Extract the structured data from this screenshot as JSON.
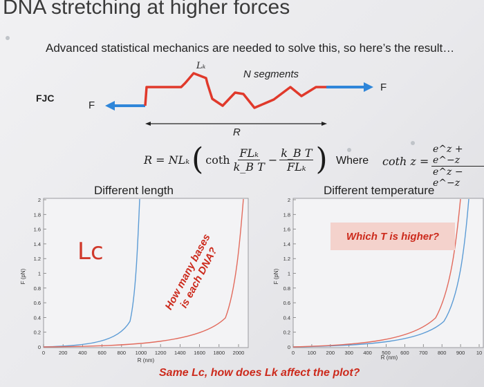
{
  "title": "DNA stretching at higher forces",
  "subtitle": "Advanced statistical mechanics are needed to solve this, so here’s the result…",
  "diagram": {
    "lk_label": "Lₖ",
    "n_segments_label": "N segments",
    "fjc_label": "FJC",
    "force_left": "F",
    "force_right": "F",
    "r_label": "R"
  },
  "formula": {
    "lhs": "R = NLₖ",
    "coth": "coth",
    "frac1_num": "FLₖ",
    "frac1_den": "k_B T",
    "frac2_num": "k_B T",
    "frac2_den": "FLₖ",
    "where": "Where",
    "coth_def_lhs": "coth z =",
    "coth_def_num": "e^z + e^−z",
    "coth_def_den": "e^z − e^−z"
  },
  "left_panel": {
    "heading": "Different length",
    "ylabel": "F (pN)",
    "xlabel": "R (nm)",
    "yticks": [
      "0",
      "0.2",
      "0.4",
      "0.6",
      "0.8",
      "1",
      "1.2",
      "1.4",
      "1.6",
      "1.8",
      "2"
    ],
    "xticks": [
      "0",
      "200",
      "400",
      "600",
      "800",
      "1000",
      "1200",
      "1400",
      "1600",
      "1800",
      "2000"
    ],
    "annotation_lc": "Lc",
    "annotation_rotated_line1": "How many bases",
    "annotation_rotated_line2": "is each DNA?"
  },
  "right_panel": {
    "heading": "Different temperature",
    "ylabel": "F (pN)",
    "xlabel": "R (nm)",
    "yticks": [
      "0",
      "0.2",
      "0.4",
      "0.6",
      "0.8",
      "1",
      "1.2",
      "1.4",
      "1.6",
      "1.8",
      "2"
    ],
    "xticks": [
      "0",
      "100",
      "200",
      "300",
      "400",
      "500",
      "600",
      "700",
      "800",
      "900",
      "10"
    ],
    "callout": "Which T is higher?"
  },
  "bottom_note": "Same Lc, how does Lk affect the plot?",
  "colors": {
    "red_annotation": "#cc2a1c",
    "blue_arrow": "#2f86d9",
    "red_chain": "#e0392b",
    "curve_blue": "#5b9bd5",
    "curve_red": "#e26a5c",
    "callout_bg": "#f4d2cc"
  }
}
